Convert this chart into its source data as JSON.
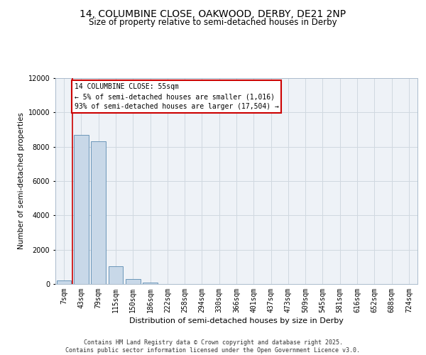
{
  "title_line1": "14, COLUMBINE CLOSE, OAKWOOD, DERBY, DE21 2NP",
  "title_line2": "Size of property relative to semi-detached houses in Derby",
  "xlabel": "Distribution of semi-detached houses by size in Derby",
  "ylabel": "Number of semi-detached properties",
  "categories": [
    "7sqm",
    "43sqm",
    "79sqm",
    "115sqm",
    "150sqm",
    "186sqm",
    "222sqm",
    "258sqm",
    "294sqm",
    "330sqm",
    "366sqm",
    "401sqm",
    "437sqm",
    "473sqm",
    "509sqm",
    "545sqm",
    "581sqm",
    "616sqm",
    "652sqm",
    "688sqm",
    "724sqm"
  ],
  "values": [
    200,
    8700,
    8300,
    1050,
    280,
    80,
    10,
    0,
    0,
    0,
    0,
    0,
    0,
    0,
    0,
    0,
    0,
    0,
    0,
    0,
    0
  ],
  "bar_color": "#c8d8e8",
  "bar_edge_color": "#5a8ab0",
  "annotation_text": "14 COLUMBINE CLOSE: 55sqm\n← 5% of semi-detached houses are smaller (1,016)\n93% of semi-detached houses are larger (17,504) →",
  "annotation_box_color": "#ffffff",
  "annotation_box_edge": "#cc0000",
  "vline_color": "#cc0000",
  "vline_x": 0.5,
  "ylim": [
    0,
    12000
  ],
  "yticks": [
    0,
    2000,
    4000,
    6000,
    8000,
    10000,
    12000
  ],
  "grid_color": "#d0d8e0",
  "background_color": "#eef2f7",
  "footer": "Contains HM Land Registry data © Crown copyright and database right 2025.\nContains public sector information licensed under the Open Government Licence v3.0.",
  "title_fontsize": 10,
  "subtitle_fontsize": 8.5,
  "annotation_fontsize": 7,
  "footer_fontsize": 6,
  "axis_label_fontsize": 7.5,
  "tick_fontsize": 7
}
